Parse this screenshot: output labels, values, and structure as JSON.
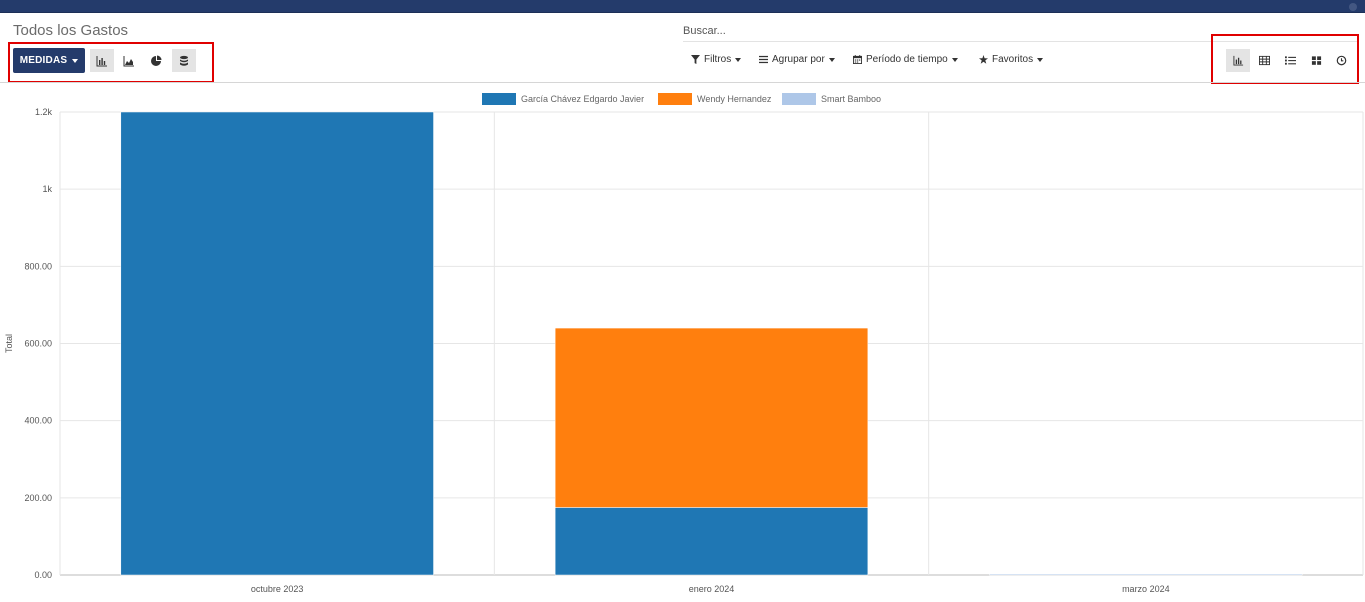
{
  "header": {
    "title": "Todos los Gastos",
    "search_placeholder": "Buscar..."
  },
  "toolbar": {
    "measures_label": "MEDIDAS",
    "chart_type_buttons": [
      {
        "icon": "bar-chart-icon",
        "active": true
      },
      {
        "icon": "line-chart-icon",
        "active": false
      },
      {
        "icon": "pie-chart-icon",
        "active": false
      },
      {
        "icon": "stacked-icon",
        "active": true
      }
    ],
    "search_panel": [
      {
        "icon": "filter-icon",
        "label": "Filtros"
      },
      {
        "icon": "group-by-icon",
        "label": "Agrupar por"
      },
      {
        "icon": "calendar-icon",
        "label": "Período de tiempo"
      },
      {
        "icon": "star-icon",
        "label": "Favoritos"
      }
    ],
    "view_switcher": [
      {
        "icon": "graph-view-icon",
        "active": true
      },
      {
        "icon": "pivot-view-icon",
        "active": false
      },
      {
        "icon": "list-view-icon",
        "active": false
      },
      {
        "icon": "kanban-view-icon",
        "active": false
      },
      {
        "icon": "activity-view-icon",
        "active": false
      }
    ]
  },
  "colors": {
    "nav": "#243b6b",
    "highlight": "#e00000"
  },
  "chart_data": {
    "type": "bar",
    "stacked": true,
    "categories": [
      "octubre 2023",
      "enero 2024",
      "marzo 2024"
    ],
    "series": [
      {
        "name": "García Chávez Edgardo Javier",
        "color": "#1f77b4",
        "values": [
          1200,
          175,
          0
        ]
      },
      {
        "name": "Wendy Hernandez",
        "color": "#ff7f0e",
        "values": [
          0,
          465,
          0
        ]
      },
      {
        "name": "Smart Bamboo",
        "color": "#aec7e8",
        "values": [
          0,
          0,
          2
        ]
      }
    ],
    "ylabel": "Total",
    "ylim": [
      0,
      1200
    ],
    "yticks": [
      {
        "value": 0,
        "label": "0.00"
      },
      {
        "value": 200,
        "label": "200.00"
      },
      {
        "value": 400,
        "label": "400.00"
      },
      {
        "value": 600,
        "label": "600.00"
      },
      {
        "value": 800,
        "label": "800.00"
      },
      {
        "value": 1000,
        "label": "1k"
      },
      {
        "value": 1200,
        "label": "1.2k"
      }
    ],
    "grid": true,
    "legend_position": "top"
  }
}
